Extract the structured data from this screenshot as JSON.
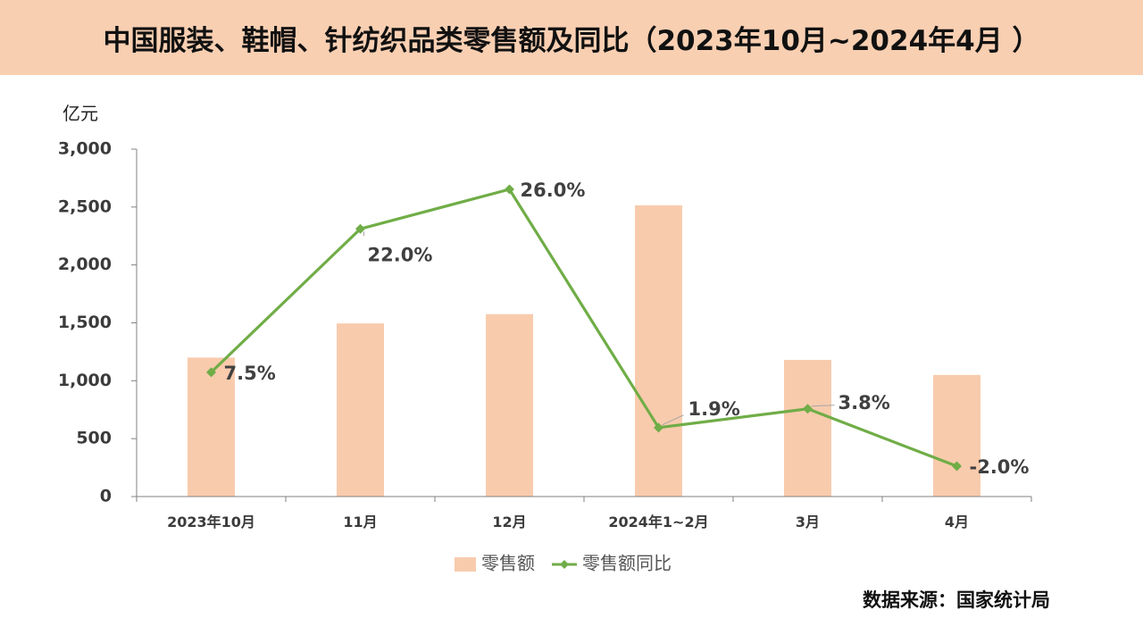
{
  "title": "中国服装、鞋帽、针纺织品类零售额及同比（2023年10月~2024年4月 ）",
  "source": "数据来源：国家统计局",
  "colors": {
    "title_bg": "#f9cfb2",
    "bar": "#f8cbad",
    "line": "#70ad47",
    "axis": "#808080",
    "text": "#404040"
  },
  "chart_data": {
    "type": "bar+line",
    "title": "中国服装、鞋帽、针纺织品类零售额及同比（2023年10月~2024年4月 ）",
    "y_unit_label": "亿元",
    "categories": [
      "2023年10月",
      "11月",
      "12月",
      "2024年1~2月",
      "3月",
      "4月"
    ],
    "ylim": [
      0,
      3000
    ],
    "yticks": [
      0,
      500,
      1000,
      1500,
      2000,
      2500,
      3000
    ],
    "ytick_labels": [
      "0",
      "500",
      "1,000",
      "1,500",
      "2,000",
      "2,500",
      "3,000"
    ],
    "grid": false,
    "legend_position": "bottom",
    "series": [
      {
        "name": "零售额",
        "type": "bar",
        "values": [
          1200,
          1495,
          1575,
          2515,
          1180,
          1050
        ]
      },
      {
        "name": "零售额同比",
        "type": "line",
        "values": [
          7.5,
          22.0,
          26.0,
          1.9,
          3.8,
          -2.0
        ],
        "labels": [
          "7.5%",
          "22.0%",
          "26.0%",
          "1.9%",
          "3.8%",
          "-2.0%"
        ]
      }
    ]
  }
}
